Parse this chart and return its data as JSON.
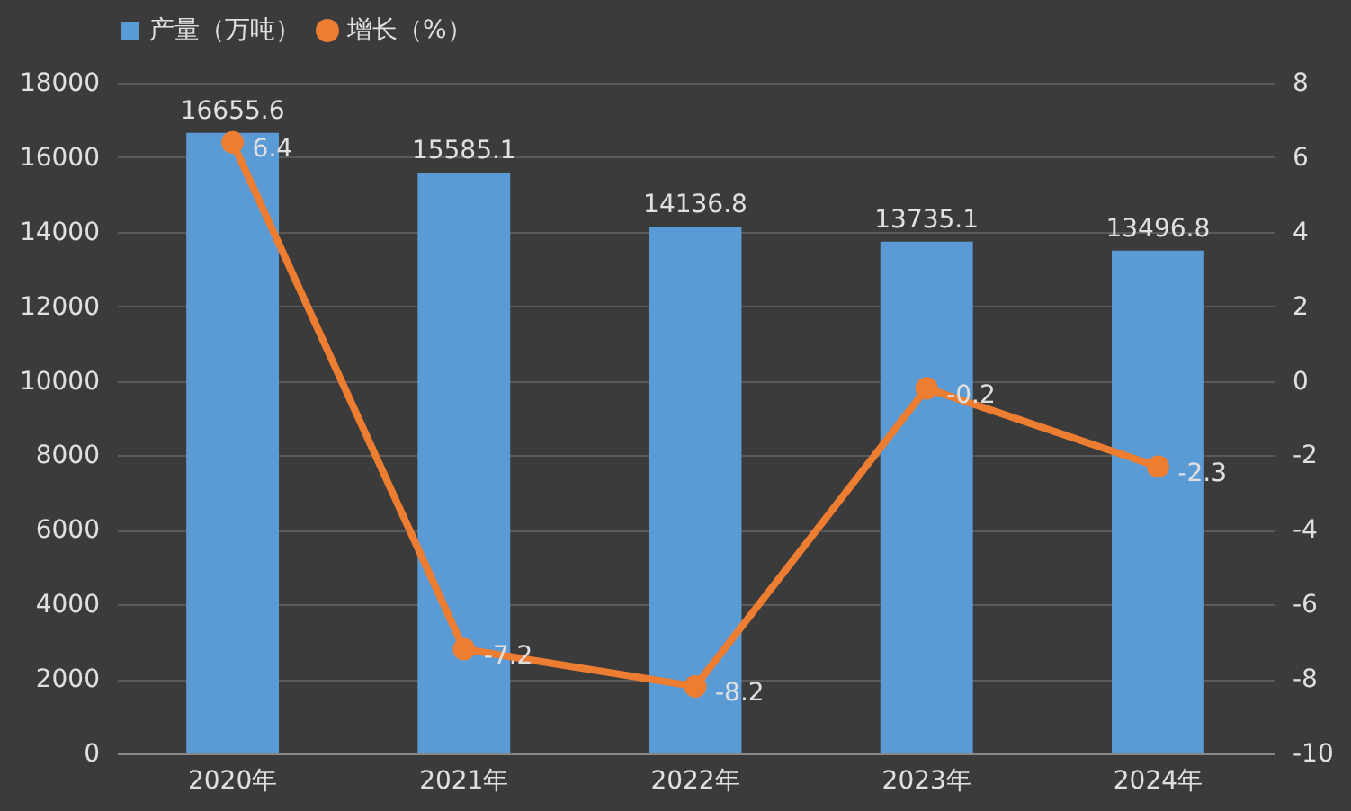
{
  "chart_data": {
    "type": "bar",
    "categories": [
      "2020年",
      "2021年",
      "2022年",
      "2023年",
      "2024年"
    ],
    "series": [
      {
        "name": "产量（万吨）",
        "color": "#5b9bd5",
        "values": [
          16655.6,
          15585.1,
          14136.8,
          13735.1,
          13496.8
        ]
      },
      {
        "name": "增长（%）",
        "type": "line",
        "axis": "y2",
        "color": "#ed7d31",
        "values": [
          6.4,
          -7.2,
          -8.2,
          -0.2,
          -2.3
        ],
        "marker": "circle",
        "line_style": "solid"
      }
    ],
    "ylim": [
      0,
      18000
    ],
    "yticks": [
      0,
      2000,
      4000,
      6000,
      8000,
      10000,
      12000,
      14000,
      16000,
      18000
    ],
    "y2lim": [
      -10,
      8
    ],
    "y2ticks": [
      -10,
      -8,
      -6,
      -4,
      -2,
      0,
      2,
      4,
      6,
      8
    ],
    "grid": "y",
    "legend": "top",
    "data_labels": true
  }
}
